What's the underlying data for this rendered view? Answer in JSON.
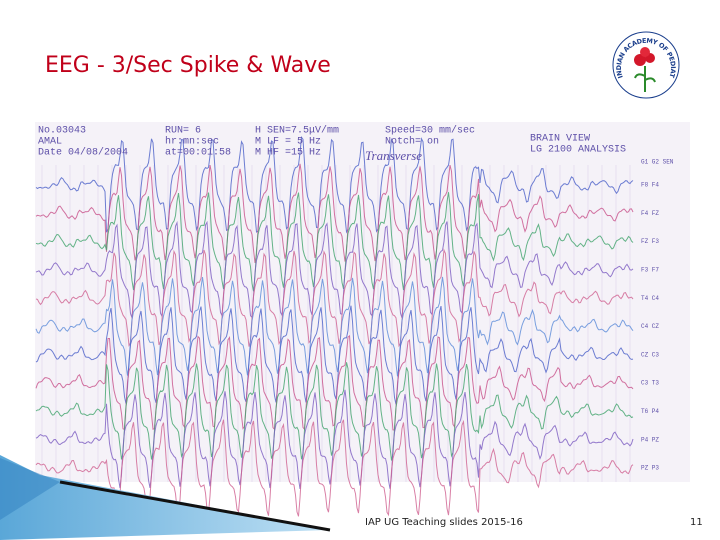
{
  "slide": {
    "title": "EEG - 3/Sec Spike & Wave",
    "logo_text": "INDIAN ACADEMY OF PEDIATRICS",
    "eeg_header": {
      "left": [
        "No.03043",
        "AMAL",
        "Date 04/08/2004"
      ],
      "middle": [
        "RUN= 6",
        "hr:mn:sec",
        "at=00:01:58"
      ],
      "settings": [
        "H SEN=7.5μV/mm",
        "M LF = 5 Hz",
        "M HF =15 Hz"
      ],
      "right": [
        "Speed=30 mm/sec",
        "Notch= on"
      ],
      "system": [
        "BRAIN VIEW",
        "LG 2100 ANALYSIS"
      ],
      "montage": "Transverse",
      "column_header": "G1 G2 SEN"
    },
    "channels": [
      "F8 F4",
      "F4 FZ",
      "FZ F3",
      "F3 F7",
      "T4 C4",
      "C4 CZ",
      "CZ C3",
      "C3 T3",
      "T6 P4",
      "P4 PZ",
      "PZ P3"
    ],
    "footer": "IAP UG Teaching slides 2015-16",
    "page_number": "11"
  }
}
